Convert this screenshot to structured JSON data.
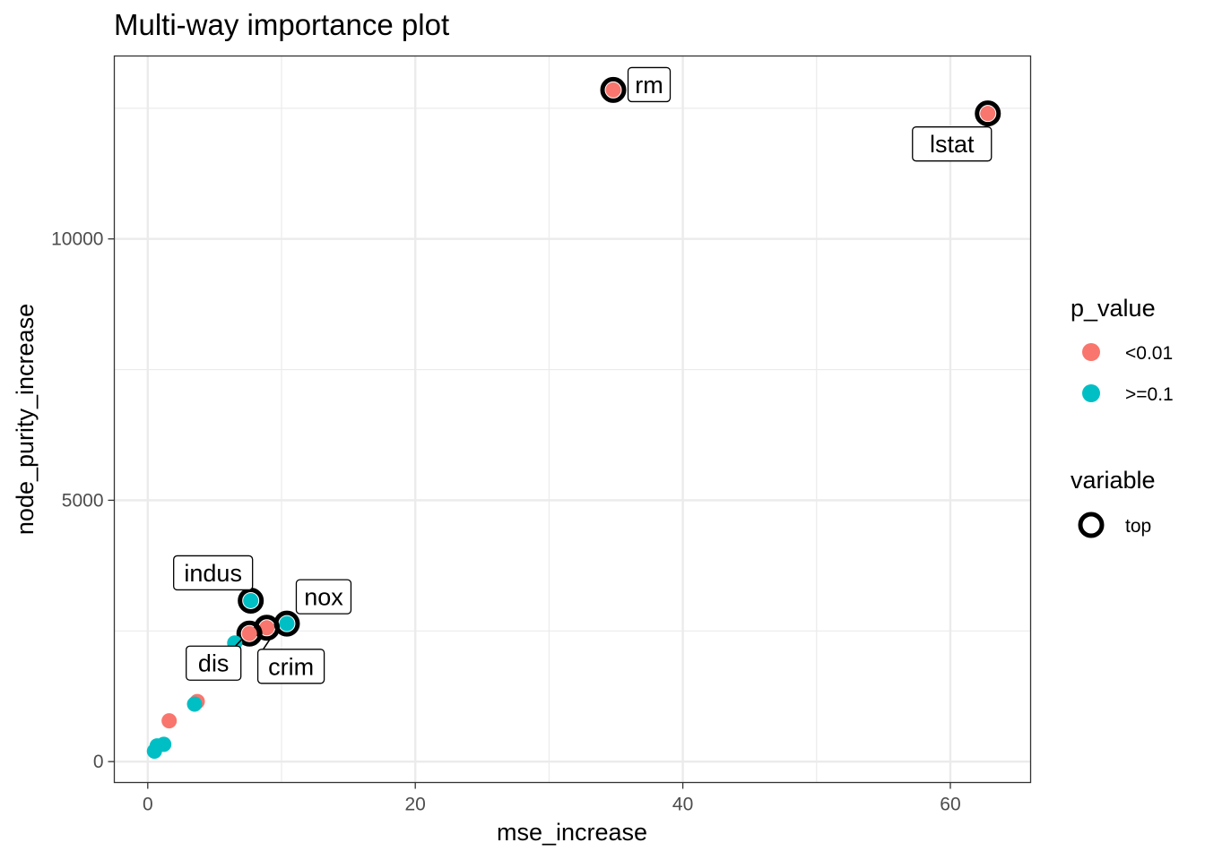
{
  "chart_data": {
    "type": "scatter",
    "title": "Multi-way importance plot",
    "xlabel": "mse_increase",
    "ylabel": "node_purity_increase",
    "xlim": [
      -2.5,
      66
    ],
    "ylim": [
      -400,
      13500
    ],
    "x_ticks": [
      0,
      20,
      40,
      60
    ],
    "y_ticks": [
      0,
      5000,
      10000
    ],
    "x_minor_ticks": [
      10,
      30,
      50
    ],
    "y_minor_ticks": [
      2500,
      7500,
      12500
    ],
    "grid": true,
    "legend_placement": "right",
    "colors": {
      "<0.01": "#F8766D",
      ">=0.1": "#00BFC4"
    },
    "legend": {
      "color_title": "p_value",
      "color_entries": [
        "<0.01",
        ">=0.1"
      ],
      "shape_title": "variable",
      "shape_entries": [
        "top"
      ]
    },
    "points": [
      {
        "name": "lstat",
        "x": 62.8,
        "y": 12400,
        "p_value": "<0.01",
        "top": true
      },
      {
        "name": "rm",
        "x": 34.8,
        "y": 12850,
        "p_value": "<0.01",
        "top": true
      },
      {
        "name": "indus",
        "x": 7.7,
        "y": 3080,
        "p_value": ">=0.1",
        "top": true
      },
      {
        "name": "nox",
        "x": 10.4,
        "y": 2640,
        "p_value": ">=0.1",
        "top": true
      },
      {
        "name": "crim",
        "x": 8.9,
        "y": 2560,
        "p_value": "<0.01",
        "top": true
      },
      {
        "name": "dis",
        "x": 7.6,
        "y": 2450,
        "p_value": "<0.01",
        "top": true
      },
      {
        "name": "",
        "x": 6.5,
        "y": 2270,
        "p_value": ">=0.1",
        "top": false
      },
      {
        "name": "",
        "x": 3.7,
        "y": 1150,
        "p_value": "<0.01",
        "top": false
      },
      {
        "name": "",
        "x": 3.5,
        "y": 1100,
        "p_value": ">=0.1",
        "top": false
      },
      {
        "name": "",
        "x": 1.6,
        "y": 780,
        "p_value": "<0.01",
        "top": false
      },
      {
        "name": "",
        "x": 1.2,
        "y": 330,
        "p_value": ">=0.1",
        "top": false
      },
      {
        "name": "",
        "x": 0.7,
        "y": 300,
        "p_value": ">=0.1",
        "top": false
      },
      {
        "name": "",
        "x": 0.5,
        "y": 200,
        "p_value": ">=0.1",
        "top": false
      }
    ]
  }
}
